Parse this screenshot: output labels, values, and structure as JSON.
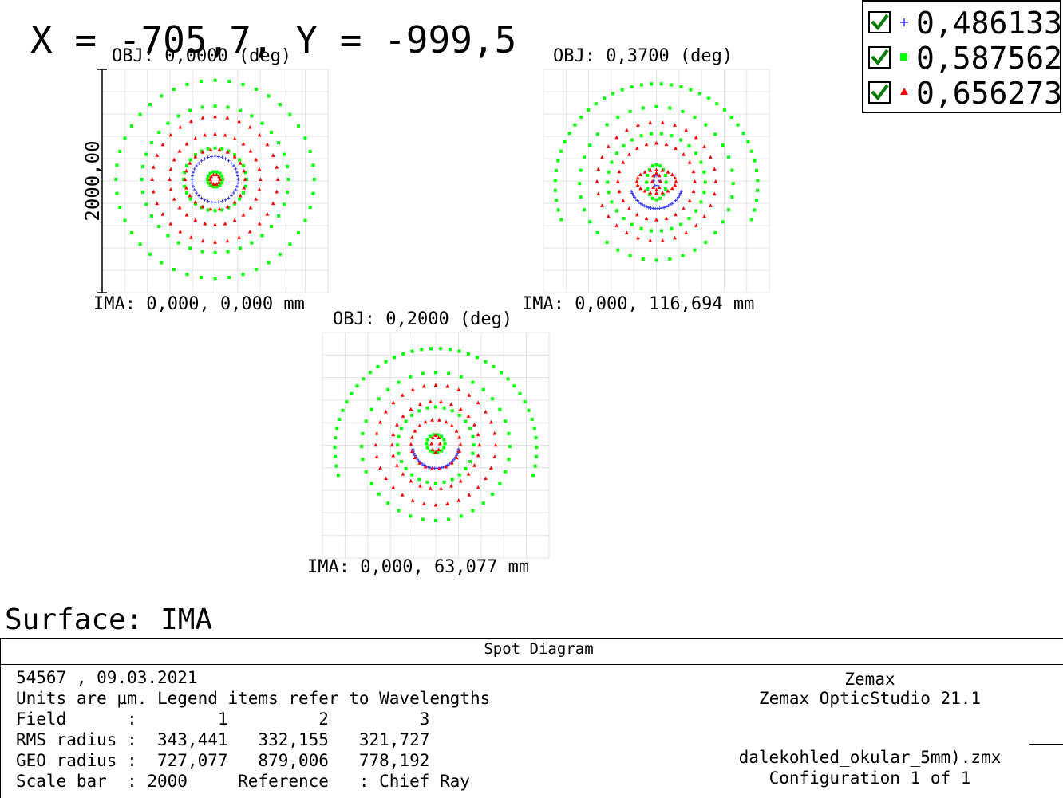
{
  "coordinates_readout": "X = -705,7, Y = -999,5",
  "surface_label": "Surface: IMA",
  "legend": {
    "items": [
      {
        "symbol": "+",
        "label": "0,486133",
        "color": "#3333ff",
        "checked": true
      },
      {
        "symbol": "square",
        "label": "0,587562",
        "color": "#00ff00",
        "checked": true
      },
      {
        "symbol": "triangle",
        "label": "0,656273",
        "color": "#ff0000",
        "checked": true
      }
    ],
    "check_color": "#007a00"
  },
  "chart_data": {
    "type": "scatter",
    "title": "Spot Diagram",
    "scale_bar_label": "2000,00",
    "scale_bar_um": 2000,
    "fields": [
      {
        "field": 1,
        "obj_label": "OBJ: 0,0000 (deg)",
        "ima_label": "IMA: 0,000, 0,000 mm",
        "series": [
          {
            "name": "0,486133",
            "marker": "plus",
            "color": "#3333ff",
            "rings": [
              {
                "r_um": 330,
                "cy_um": 0,
                "n": 40,
                "stretch": 1.0
              }
            ]
          },
          {
            "name": "0,587562",
            "marker": "square",
            "color": "#00ff00",
            "rings": [
              {
                "r_um": 1420,
                "cy_um": 0,
                "n": 44,
                "stretch": 1.0
              },
              {
                "r_um": 1050,
                "cy_um": 0,
                "n": 36,
                "stretch": 1.0
              },
              {
                "r_um": 450,
                "cy_um": 0,
                "n": 28,
                "stretch": 1.0
              },
              {
                "r_um": 110,
                "cy_um": 0,
                "n": 14,
                "stretch": 1.0
              }
            ]
          },
          {
            "name": "0,656273",
            "marker": "triangle",
            "color": "#ff0000",
            "rings": [
              {
                "r_um": 900,
                "cy_um": 0,
                "n": 32,
                "stretch": 1.0
              },
              {
                "r_um": 650,
                "cy_um": 0,
                "n": 28,
                "stretch": 1.0
              },
              {
                "r_um": 430,
                "cy_um": 0,
                "n": 22,
                "stretch": 1.0
              },
              {
                "r_um": 70,
                "cy_um": 0,
                "n": 10,
                "stretch": 1.0
              }
            ]
          }
        ]
      },
      {
        "field": 2,
        "obj_label": "OBJ: 0,3700 (deg)",
        "ima_label": "IMA: 0,000, 116,694 mm",
        "series": [
          {
            "name": "0,486133",
            "marker": "plus",
            "color": "#3333ff",
            "rings": [
              {
                "r_um": 380,
                "cy_um": 40,
                "n": 30,
                "stretch": 1.0,
                "arc": [
                  200,
                  340
                ]
              },
              {
                "r_um": 40,
                "cy_um": 20,
                "n": 6,
                "stretch": 2.0
              }
            ]
          },
          {
            "name": "0,587562",
            "marker": "square",
            "color": "#00ff00",
            "rings": [
              {
                "r_um": 1450,
                "cy_um": 80,
                "n": 40,
                "stretch": 1.0,
                "arc": [
                  -20,
                  200
                ]
              },
              {
                "r_um": 1100,
                "cy_um": 60,
                "n": 36,
                "stretch": 1.0
              },
              {
                "r_um": 700,
                "cy_um": 40,
                "n": 30,
                "stretch": 1.0
              },
              {
                "r_um": 140,
                "cy_um": 40,
                "n": 16,
                "stretch": 1.8
              }
            ]
          },
          {
            "name": "0,656273",
            "marker": "triangle",
            "color": "#ff0000",
            "rings": [
              {
                "r_um": 850,
                "cy_um": 30,
                "n": 30,
                "stretch": 1.0
              },
              {
                "r_um": 550,
                "cy_um": 30,
                "n": 24,
                "stretch": 1.0
              },
              {
                "r_um": 280,
                "cy_um": 30,
                "n": 20,
                "stretch": 0.6
              },
              {
                "r_um": 60,
                "cy_um": 30,
                "n": 8,
                "stretch": 2.0
              }
            ]
          }
        ]
      },
      {
        "field": 3,
        "obj_label": "OBJ: 0,2000 (deg)",
        "ima_label": "IMA: 0,000, 63,077 mm",
        "series": [
          {
            "name": "0,486133",
            "marker": "plus",
            "color": "#3333ff",
            "rings": [
              {
                "r_um": 330,
                "cy_um": 20,
                "n": 30,
                "stretch": 1.0,
                "arc": [
                  190,
                  350
                ]
              }
            ]
          },
          {
            "name": "0,587562",
            "marker": "square",
            "color": "#00ff00",
            "rings": [
              {
                "r_um": 1430,
                "cy_um": 80,
                "n": 40,
                "stretch": 1.0,
                "arc": [
                  -15,
                  195
                ]
              },
              {
                "r_um": 1050,
                "cy_um": 40,
                "n": 36,
                "stretch": 1.0
              },
              {
                "r_um": 540,
                "cy_um": 20,
                "n": 28,
                "stretch": 1.0
              },
              {
                "r_um": 130,
                "cy_um": 0,
                "n": 14,
                "stretch": 1.0
              }
            ]
          },
          {
            "name": "0,656273",
            "marker": "triangle",
            "color": "#ff0000",
            "rings": [
              {
                "r_um": 850,
                "cy_um": 20,
                "n": 32,
                "stretch": 1.0
              },
              {
                "r_um": 620,
                "cy_um": 20,
                "n": 26,
                "stretch": 1.0
              },
              {
                "r_um": 350,
                "cy_um": 10,
                "n": 22,
                "stretch": 1.0
              },
              {
                "r_um": 60,
                "cy_um": 0,
                "n": 8,
                "stretch": 2.0
              }
            ]
          }
        ]
      }
    ]
  },
  "footer": {
    "title": "Spot Diagram",
    "left_lines": [
      "54567 , 09.03.2021",
      "Units are µm. Legend items refer to Wavelengths",
      "Field      :        1         2         3",
      "RMS radius :  343,441   332,155   321,727",
      "GEO radius :  727,077   879,006   778,192",
      "Scale bar  : 2000     Reference   : Chief Ray"
    ],
    "right_company": "Zemax",
    "right_product": "Zemax OpticStudio 21.1",
    "right_file": "dalekohled_okular_5mm).zmx",
    "right_config": "Configuration 1 of 1"
  }
}
